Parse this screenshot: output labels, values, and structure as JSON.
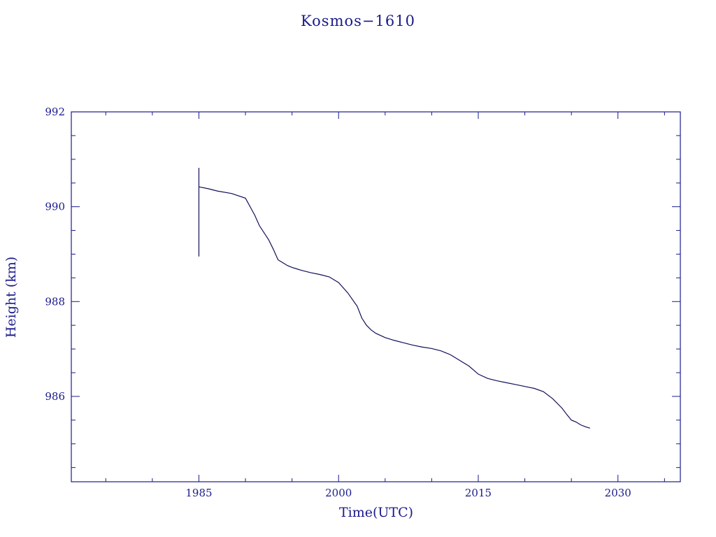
{
  "chart_data": {
    "type": "line",
    "title": "Kosmos−1610",
    "xlabel": "Time(UTC)",
    "ylabel": "Height (km)",
    "xlim": [
      1971.3,
      2036.7
    ],
    "ylim": [
      984.2,
      992.0
    ],
    "x_ticks": [
      1985,
      2000,
      2015,
      2030
    ],
    "x_tick_labels": [
      "1985",
      "2000",
      "2015",
      "2030"
    ],
    "y_ticks": [
      986,
      988,
      990,
      992
    ],
    "y_tick_labels": [
      "986",
      "988",
      "990",
      "992"
    ],
    "grid": false,
    "colors": {
      "axis": "#1a1a8c",
      "series": "#10105a"
    },
    "spike": {
      "x": 1985.0,
      "y_min": 988.95,
      "y_max": 990.82
    },
    "series": [
      {
        "x": [
          1985.0,
          1986.0,
          1987.0,
          1988.5,
          1990.0,
          1990.5,
          1991.0,
          1991.5,
          1992.0,
          1992.5,
          1993.0,
          1993.5,
          1994.0,
          1994.5,
          1995.0,
          1995.5,
          1996.0,
          1997.0,
          1998.0,
          1999.0,
          2000.0,
          2001.0,
          2002.0,
          2002.5,
          2003.0,
          2003.5,
          2004.0,
          2005.0,
          2006.0,
          2007.0,
          2008.0,
          2009.0,
          2010.0,
          2011.0,
          2012.0,
          2013.0,
          2014.0,
          2015.0,
          2016.0,
          2017.0,
          2018.0,
          2019.0,
          2020.0,
          2021.0,
          2022.0,
          2023.0,
          2024.0,
          2024.5,
          2025.0,
          2025.5,
          2026.0,
          2026.5,
          2027.0
        ],
        "y": [
          990.42,
          990.38,
          990.33,
          990.28,
          990.18,
          990.0,
          989.82,
          989.6,
          989.45,
          989.3,
          989.1,
          988.88,
          988.82,
          988.76,
          988.72,
          988.69,
          988.66,
          988.61,
          988.57,
          988.52,
          988.4,
          988.18,
          987.9,
          987.65,
          987.5,
          987.4,
          987.33,
          987.24,
          987.18,
          987.13,
          987.08,
          987.04,
          987.01,
          986.96,
          986.88,
          986.76,
          986.64,
          986.47,
          986.38,
          986.33,
          986.29,
          986.25,
          986.21,
          986.17,
          986.1,
          985.95,
          985.75,
          985.62,
          985.5,
          985.46,
          985.4,
          985.36,
          985.33
        ]
      }
    ]
  }
}
